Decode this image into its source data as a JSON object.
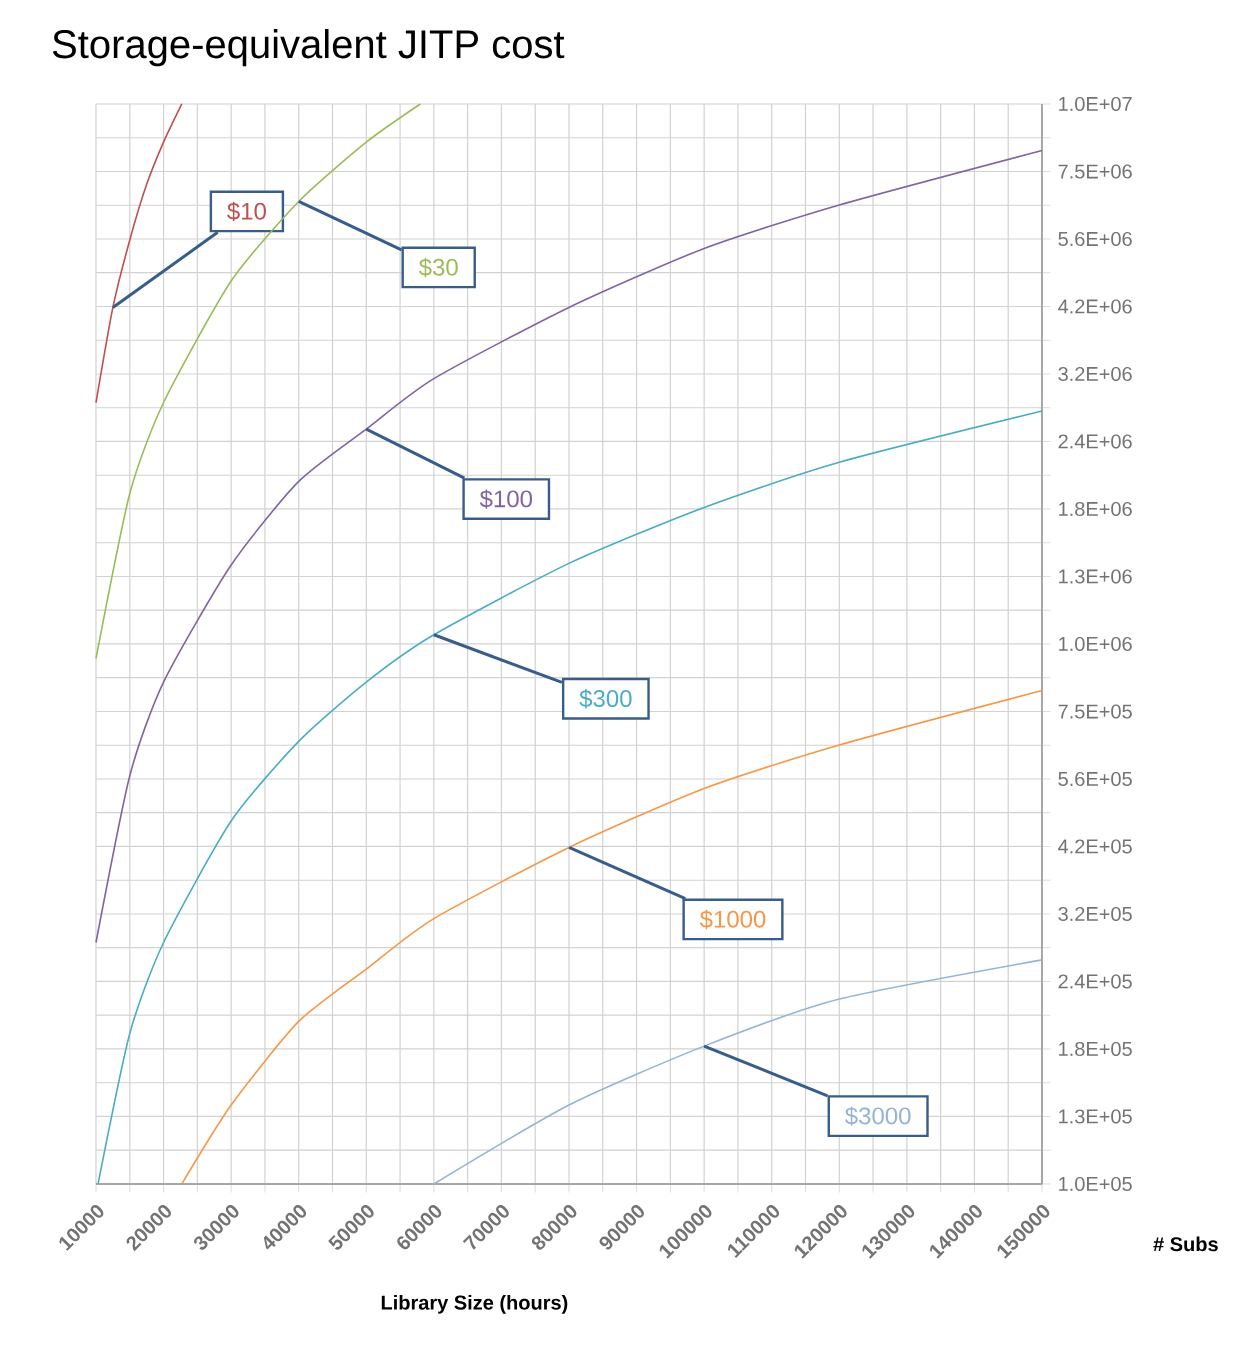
{
  "chart_data": {
    "type": "line",
    "title": "Storage-equivalent JITP cost",
    "xlabel": "Library Size (hours)",
    "ylabel": "# Subs",
    "log": "y",
    "grid": true,
    "xlim": [
      10000,
      150000
    ],
    "ylim": [
      100000,
      10000000
    ],
    "xticks": [
      10000,
      {
        "value": 15000,
        "label": null
      },
      20000,
      {
        "value": 25000,
        "label": null
      },
      30000,
      {
        "value": 35000,
        "label": null
      },
      40000,
      {
        "value": 45000,
        "label": null
      },
      50000,
      {
        "value": 55000,
        "label": null
      },
      60000,
      {
        "value": 65000,
        "label": null
      },
      70000,
      {
        "value": 75000,
        "label": null
      },
      80000,
      {
        "value": 85000,
        "label": null
      },
      90000,
      {
        "value": 95000,
        "label": null
      },
      100000,
      {
        "value": 105000,
        "label": null
      },
      110000,
      {
        "value": 115000,
        "label": null
      },
      120000,
      {
        "value": 125000,
        "label": null
      },
      130000,
      {
        "value": 135000,
        "label": null
      },
      140000,
      {
        "value": 145000,
        "label": null
      },
      150000
    ],
    "yticks": [
      {
        "value": 100000,
        "label": "1.0E+05"
      },
      {
        "value": 115480,
        "label": null
      },
      {
        "value": 133350,
        "label": "1.3E+05"
      },
      {
        "value": 153990,
        "label": null
      },
      {
        "value": 177830,
        "label": "1.8E+05"
      },
      {
        "value": 205350,
        "label": null
      },
      {
        "value": 237140,
        "label": "2.4E+05"
      },
      {
        "value": 273840,
        "label": null
      },
      {
        "value": 316230,
        "label": "3.2E+05"
      },
      {
        "value": 365170,
        "label": null
      },
      {
        "value": 421700,
        "label": "4.2E+05"
      },
      {
        "value": 486970,
        "label": null
      },
      {
        "value": 562340,
        "label": "5.6E+05"
      },
      {
        "value": 649380,
        "label": null
      },
      {
        "value": 749890,
        "label": "7.5E+05"
      },
      {
        "value": 865960,
        "label": null
      },
      {
        "value": 1000000,
        "label": "1.0E+06"
      },
      {
        "value": 1154800,
        "label": null
      },
      {
        "value": 1333500,
        "label": "1.3E+06"
      },
      {
        "value": 1539900,
        "label": null
      },
      {
        "value": 1778300,
        "label": "1.8E+06"
      },
      {
        "value": 2053500,
        "label": null
      },
      {
        "value": 2371400,
        "label": "2.4E+06"
      },
      {
        "value": 2738400,
        "label": null
      },
      {
        "value": 3162300,
        "label": "3.2E+06"
      },
      {
        "value": 3651700,
        "label": null
      },
      {
        "value": 4217000,
        "label": "4.2E+06"
      },
      {
        "value": 4869700,
        "label": null
      },
      {
        "value": 5623400,
        "label": "5.6E+06"
      },
      {
        "value": 6493800,
        "label": null
      },
      {
        "value": 7498900,
        "label": "7.5E+06"
      },
      {
        "value": 8659600,
        "label": null
      },
      {
        "value": 10000000,
        "label": "1.0E+07"
      }
    ],
    "series": [
      {
        "name": "$10",
        "color": "#c0504d",
        "x": [
          10000,
          12500,
          15000,
          17500,
          20000,
          22700
        ],
        "values": [
          2800000,
          4200000,
          5600000,
          7100000,
          8500000,
          10000000
        ]
      },
      {
        "name": "$30",
        "color": "#9bbb59",
        "x": [
          10000,
          15000,
          20000,
          30000,
          40000,
          50000,
          58000
        ],
        "values": [
          940000,
          1900000,
          2800000,
          4700000,
          6600000,
          8500000,
          10000000
        ]
      },
      {
        "name": "$100",
        "color": "#8064a2",
        "x": [
          10000,
          15000,
          20000,
          30000,
          40000,
          50000,
          60000,
          80000,
          100000,
          120000,
          150000
        ],
        "values": [
          280000,
          570000,
          850000,
          1400000,
          2000000,
          2500000,
          3100000,
          4200000,
          5400000,
          6500000,
          8200000
        ]
      },
      {
        "name": "$300",
        "color": "#4bacc6",
        "x": [
          10300,
          15000,
          20000,
          30000,
          40000,
          50000,
          60000,
          80000,
          100000,
          120000,
          150000
        ],
        "values": [
          100000,
          190000,
          280000,
          470000,
          660000,
          850000,
          1040000,
          1410000,
          1790000,
          2170000,
          2700000
        ]
      },
      {
        "name": "$1000",
        "color": "#f79646",
        "x": [
          22700,
          30000,
          40000,
          50000,
          60000,
          80000,
          100000,
          120000,
          150000
        ],
        "values": [
          100000,
          140000,
          200000,
          250000,
          310000,
          420000,
          540000,
          650000,
          820000
        ]
      },
      {
        "name": "$3000",
        "color": "#95b3d7",
        "x": [
          60000,
          80000,
          100000,
          120000,
          150000
        ],
        "values": [
          100000,
          140000,
          180000,
          220000,
          260000
        ]
      }
    ]
  }
}
